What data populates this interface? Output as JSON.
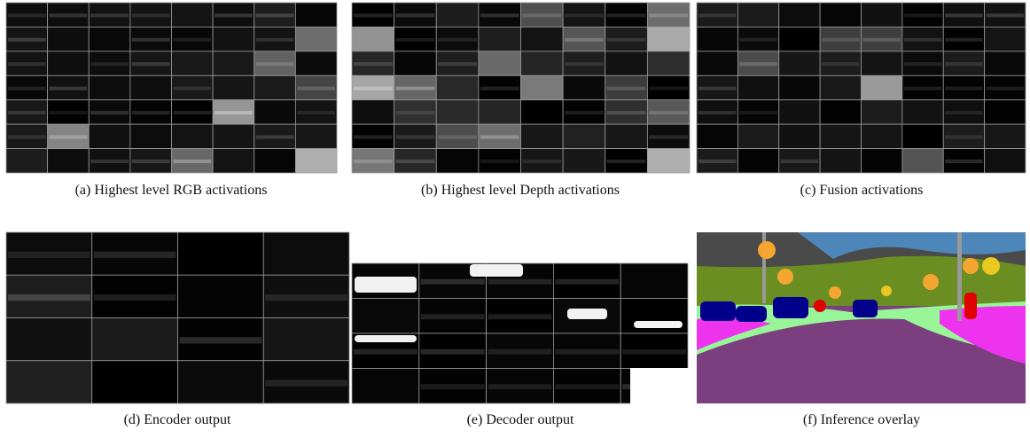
{
  "figure": {
    "captions": [
      "(a) Highest level RGB activations",
      "(b) Highest level Depth activations",
      "(c) Fusion activations",
      "(d) Encoder output",
      "(e) Decoder output",
      "(f) Inference overlay"
    ]
  }
}
